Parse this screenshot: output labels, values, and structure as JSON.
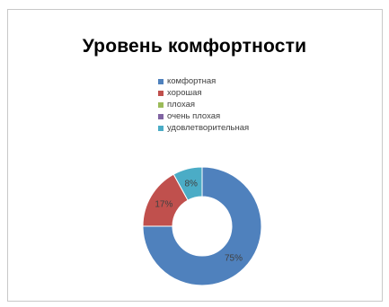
{
  "chart_data": {
    "type": "donut",
    "title": "Уровень комфортности",
    "legend_position": "top",
    "grid": false,
    "categories": [
      "комфортная",
      "хорошая",
      "плохая",
      "очень плохая",
      "удовлетворительная"
    ],
    "values": [
      75,
      17,
      0,
      0,
      8
    ],
    "data_labels": [
      "75%",
      "17%",
      "",
      "",
      "8%"
    ],
    "colors": [
      "#4f81bd",
      "#c0504d",
      "#9bbb59",
      "#8064a2",
      "#4bacc6"
    ],
    "units": "%"
  }
}
